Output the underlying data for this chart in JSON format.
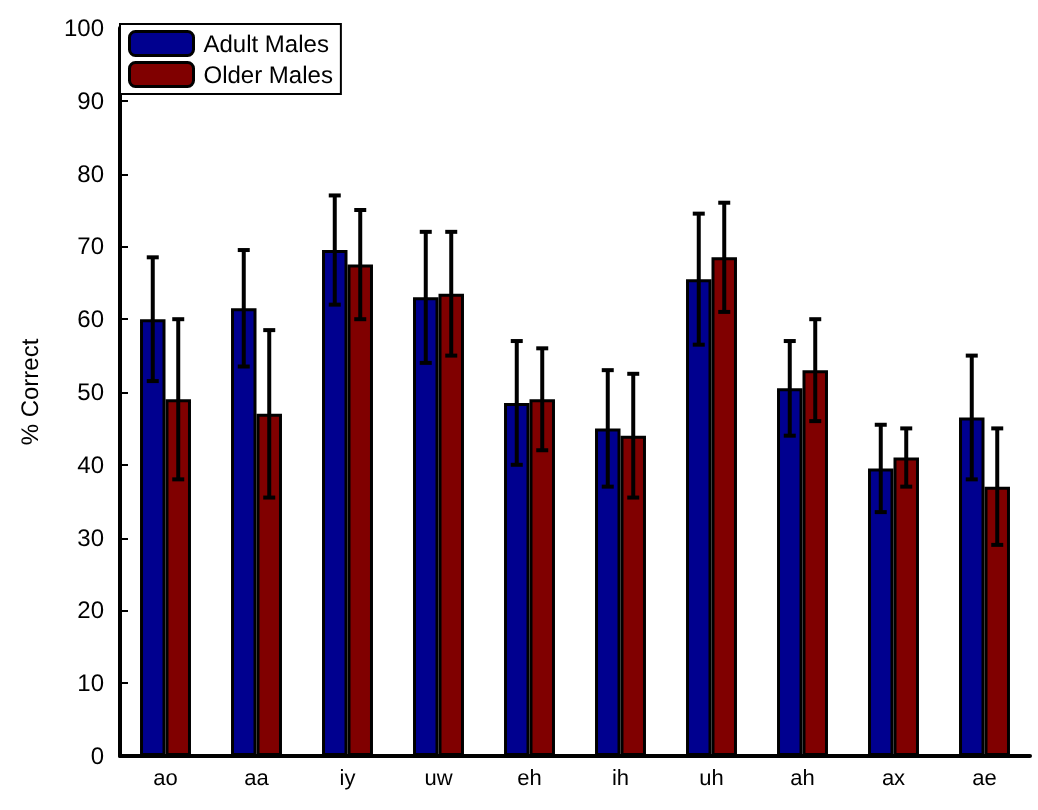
{
  "chart_data": {
    "type": "bar",
    "ylabel": "% Correct",
    "categories": [
      "ao",
      "aa",
      "iy",
      "uw",
      "eh",
      "ih",
      "uh",
      "ah",
      "ax",
      "ae"
    ],
    "series": [
      {
        "name": "Adult Males",
        "color": "#00008f",
        "values": [
          60,
          61.5,
          69.5,
          63,
          48.5,
          45,
          65.5,
          50.5,
          39.5,
          46.5
        ],
        "errors": [
          8.5,
          8,
          7.5,
          9,
          8.5,
          8,
          9,
          6.5,
          6,
          8.5
        ]
      },
      {
        "name": "Older Males",
        "color": "#800000",
        "values": [
          49,
          47,
          67.5,
          63.5,
          49,
          44,
          68.5,
          53,
          41,
          37
        ],
        "errors": [
          11,
          11.5,
          7.5,
          8.5,
          7,
          8.5,
          7.5,
          7,
          4,
          8
        ]
      }
    ],
    "ylim": [
      0,
      100
    ],
    "yticks": [
      0,
      10,
      20,
      30,
      40,
      50,
      60,
      70,
      80,
      90,
      100
    ],
    "grid": false,
    "legend": "top left"
  }
}
